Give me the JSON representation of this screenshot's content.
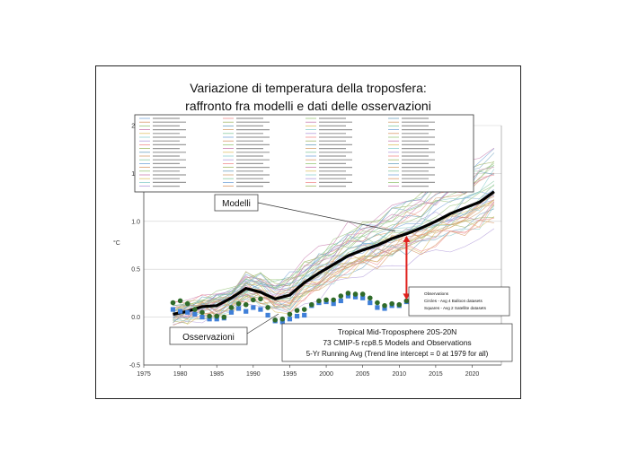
{
  "chart_data": {
    "type": "line",
    "title": "Variazione di temperatura della troposfera:",
    "subtitle": "raffronto fra modelli e dati delle osservazioni",
    "ylabel": "°C",
    "xlim": [
      1975,
      2024
    ],
    "ylim": [
      -0.5,
      2.0
    ],
    "x_ticks": [
      "1975",
      "1980",
      "1985",
      "1990",
      "1995",
      "2000",
      "2005",
      "2010",
      "2015",
      "2020"
    ],
    "y_ticks": [
      "2.0",
      "1.5",
      "1.0",
      "0.5",
      "0.0",
      "-0.5"
    ],
    "grid": true,
    "legend_position": "top",
    "model_mean": {
      "x": [
        1979,
        1981,
        1983,
        1985,
        1987,
        1989,
        1991,
        1993,
        1995,
        1997,
        1999,
        2001,
        2003,
        2005,
        2007,
        2009,
        2011,
        2013,
        2015,
        2017,
        2019,
        2021,
        2023
      ],
      "y": [
        0.03,
        0.06,
        0.11,
        0.12,
        0.2,
        0.3,
        0.26,
        0.19,
        0.23,
        0.36,
        0.46,
        0.55,
        0.64,
        0.7,
        0.75,
        0.82,
        0.87,
        0.93,
        1.0,
        1.08,
        1.14,
        1.2,
        1.31
      ]
    },
    "balloon_observations": {
      "name": "Circles - Avg 4 Balloon datasets",
      "x": [
        1979,
        1980,
        1981,
        1982,
        1983,
        1984,
        1985,
        1986,
        1987,
        1988,
        1989,
        1990,
        1991,
        1992,
        1993,
        1994,
        1995,
        1996,
        1997,
        1998,
        1999,
        2000,
        2001,
        2002,
        2003,
        2004,
        2005,
        2006,
        2007,
        2008,
        2009,
        2010,
        2011
      ],
      "y": [
        0.15,
        0.17,
        0.14,
        0.08,
        0.05,
        0.01,
        0.01,
        0.0,
        0.1,
        0.14,
        0.13,
        0.18,
        0.19,
        0.1,
        -0.03,
        -0.02,
        0.03,
        0.07,
        0.08,
        0.13,
        0.17,
        0.18,
        0.18,
        0.22,
        0.25,
        0.24,
        0.24,
        0.2,
        0.15,
        0.12,
        0.14,
        0.13,
        0.17
      ]
    },
    "satellite_observations": {
      "name": "Squares - Avg 2 Satellite datasets",
      "x": [
        1979,
        1980,
        1981,
        1982,
        1983,
        1984,
        1985,
        1986,
        1987,
        1988,
        1989,
        1990,
        1991,
        1992,
        1993,
        1994,
        1995,
        1996,
        1997,
        1998,
        1999,
        2000,
        2001,
        2002,
        2003,
        2004,
        2005,
        2006,
        2007,
        2008,
        2009,
        2010,
        2011
      ],
      "y": [
        0.08,
        0.06,
        0.05,
        0.03,
        0.0,
        -0.02,
        -0.02,
        -0.01,
        0.05,
        0.09,
        0.06,
        0.1,
        0.08,
        0.02,
        -0.04,
        -0.05,
        -0.02,
        0.01,
        0.02,
        0.12,
        0.15,
        0.16,
        0.14,
        0.17,
        0.22,
        0.21,
        0.2,
        0.15,
        0.1,
        0.09,
        0.12,
        0.12,
        0.16
      ]
    },
    "model_colors": [
      "#7aa6d8",
      "#d89a6a",
      "#9bc67c",
      "#c97fb0",
      "#e0c36a",
      "#8ecfcf",
      "#b39ddb",
      "#f08f8f",
      "#a3b96b",
      "#6fa3c0",
      "#d4a373",
      "#88c9a1"
    ],
    "arrow_color": "#e0201c"
  },
  "labels": {
    "models_callout": "Modelli",
    "obs_callout": "Osservazioni",
    "legend_title": "Observations",
    "legend_circles": "Circles - Avg 4 Balloon datasets",
    "legend_squares": "Squares - Avg 2 Satellite datasets",
    "info_line1": "Tropical Mid-Troposphere 20S-20N",
    "info_line2": "73 CMIP-5 rcp8.5 Models and Observations",
    "info_line3": "5-Yr Running Avg (Trend line intercept = 0 at 1979 for all)"
  }
}
